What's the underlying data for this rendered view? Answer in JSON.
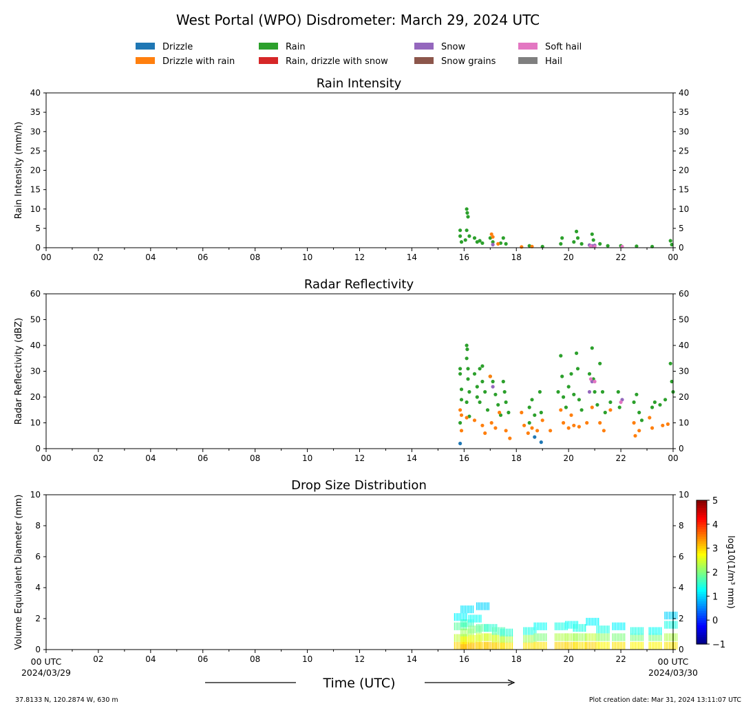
{
  "figure": {
    "title": "West Portal (WPO) Disdrometer: March 29, 2024 UTC",
    "footer_left": "37.8133 N, 120.2874 W, 630 m",
    "footer_right": "Plot creation date: Mar 31, 2024 13:11:07 UTC",
    "xlabel": "Time (UTC)",
    "x_start_label": "00 UTC",
    "x_start_date": "2024/03/29",
    "x_end_label": "00 UTC",
    "x_end_date": "2024/03/30"
  },
  "legend": {
    "placement": "top-center",
    "items": [
      {
        "label": "Drizzle",
        "color": "#1f77b4"
      },
      {
        "label": "Drizzle with rain",
        "color": "#ff7f0e"
      },
      {
        "label": "Rain",
        "color": "#2ca02c"
      },
      {
        "label": "Rain, drizzle with snow",
        "color": "#d62728"
      },
      {
        "label": "Snow",
        "color": "#9467bd"
      },
      {
        "label": "Snow grains",
        "color": "#8c564b"
      },
      {
        "label": "Soft hail",
        "color": "#e377c2"
      },
      {
        "label": "Hail",
        "color": "#7f7f7f"
      }
    ]
  },
  "chart_data": [
    {
      "type": "scatter",
      "title": "Rain Intensity",
      "ylabel": "Rain Intensity (mm/h)",
      "xlim": [
        0,
        24
      ],
      "ylim": [
        0,
        40
      ],
      "yticks": [
        0,
        5,
        10,
        15,
        20,
        25,
        30,
        35,
        40
      ],
      "xtick_labels": [
        "00",
        "02",
        "04",
        "06",
        "08",
        "10",
        "12",
        "14",
        "16",
        "18",
        "20",
        "22",
        "00"
      ],
      "grid": false,
      "series": [
        {
          "name": "Rain",
          "color": "#2ca02c",
          "points": [
            [
              15.85,
              4.5
            ],
            [
              15.85,
              3
            ],
            [
              15.9,
              1.5
            ],
            [
              16.05,
              2
            ],
            [
              16.1,
              10
            ],
            [
              16.12,
              9
            ],
            [
              16.15,
              8
            ],
            [
              16.1,
              4.5
            ],
            [
              16.2,
              3
            ],
            [
              16.4,
              2.5
            ],
            [
              16.5,
              1.5
            ],
            [
              16.6,
              1.8
            ],
            [
              16.7,
              1.2
            ],
            [
              17.0,
              2.5
            ],
            [
              17.1,
              1.5
            ],
            [
              17.4,
              1.2
            ],
            [
              17.5,
              2.5
            ],
            [
              17.6,
              1
            ],
            [
              18.5,
              0.5
            ],
            [
              19.0,
              0.3
            ],
            [
              19.7,
              1
            ],
            [
              19.75,
              2.5
            ],
            [
              20.2,
              1.5
            ],
            [
              20.3,
              4.2
            ],
            [
              20.35,
              2.5
            ],
            [
              20.5,
              1
            ],
            [
              20.9,
              3.5
            ],
            [
              20.95,
              2
            ],
            [
              21.2,
              1
            ],
            [
              21.5,
              0.5
            ],
            [
              22.0,
              0.5
            ],
            [
              22.6,
              0.4
            ],
            [
              23.2,
              0.3
            ],
            [
              23.9,
              1.8
            ],
            [
              23.95,
              0.8
            ]
          ]
        },
        {
          "name": "Drizzle with rain",
          "color": "#ff7f0e",
          "points": [
            [
              17.05,
              3.5
            ],
            [
              17.1,
              2.8
            ],
            [
              17.3,
              1
            ],
            [
              18.2,
              0.2
            ],
            [
              18.6,
              0.3
            ]
          ]
        },
        {
          "name": "Snow",
          "color": "#9467bd",
          "points": [
            [
              17.1,
              0.8
            ],
            [
              20.8,
              0.7
            ],
            [
              20.9,
              0.5
            ],
            [
              21.0,
              0.6
            ]
          ]
        },
        {
          "name": "Soft hail",
          "color": "#e377c2",
          "points": [
            [
              20.85,
              0.4
            ],
            [
              21.0,
              0.3
            ],
            [
              22.05,
              0.3
            ]
          ]
        }
      ]
    },
    {
      "type": "scatter",
      "title": "Radar Reflectivity",
      "ylabel": "Radar Reflectivity (dBZ)",
      "xlim": [
        0,
        24
      ],
      "ylim": [
        0,
        60
      ],
      "yticks": [
        0,
        10,
        20,
        30,
        40,
        50,
        60
      ],
      "xtick_labels": [
        "00",
        "02",
        "04",
        "06",
        "08",
        "10",
        "12",
        "14",
        "16",
        "18",
        "20",
        "22",
        "00"
      ],
      "grid": false,
      "series": [
        {
          "name": "Rain",
          "color": "#2ca02c",
          "points": [
            [
              15.85,
              31
            ],
            [
              15.85,
              29
            ],
            [
              15.9,
              23
            ],
            [
              15.9,
              19
            ],
            [
              15.85,
              10
            ],
            [
              16.1,
              40
            ],
            [
              16.12,
              38.5
            ],
            [
              16.1,
              35
            ],
            [
              16.15,
              31
            ],
            [
              16.15,
              27
            ],
            [
              16.2,
              22
            ],
            [
              16.1,
              18
            ],
            [
              16.2,
              12.5
            ],
            [
              16.4,
              29
            ],
            [
              16.5,
              24
            ],
            [
              16.5,
              20
            ],
            [
              16.6,
              31
            ],
            [
              16.6,
              18
            ],
            [
              16.7,
              32
            ],
            [
              16.7,
              26
            ],
            [
              16.8,
              22
            ],
            [
              16.9,
              15
            ],
            [
              17.0,
              28
            ],
            [
              17.1,
              26
            ],
            [
              17.2,
              21
            ],
            [
              17.3,
              17
            ],
            [
              17.4,
              13
            ],
            [
              17.5,
              26
            ],
            [
              17.55,
              22
            ],
            [
              17.6,
              18
            ],
            [
              17.7,
              14
            ],
            [
              18.5,
              16
            ],
            [
              18.5,
              10
            ],
            [
              18.6,
              19
            ],
            [
              18.7,
              13
            ],
            [
              18.9,
              22
            ],
            [
              18.95,
              14
            ],
            [
              19.6,
              22
            ],
            [
              19.7,
              36
            ],
            [
              19.75,
              28
            ],
            [
              19.8,
              20
            ],
            [
              19.9,
              16
            ],
            [
              20.0,
              24
            ],
            [
              20.1,
              29
            ],
            [
              20.2,
              21
            ],
            [
              20.3,
              37
            ],
            [
              20.35,
              31
            ],
            [
              20.4,
              19
            ],
            [
              20.5,
              15
            ],
            [
              20.8,
              29
            ],
            [
              20.9,
              39
            ],
            [
              20.95,
              27
            ],
            [
              21.0,
              22
            ],
            [
              21.1,
              17
            ],
            [
              21.2,
              33
            ],
            [
              21.3,
              22
            ],
            [
              21.4,
              14
            ],
            [
              21.6,
              18
            ],
            [
              21.9,
              22
            ],
            [
              21.95,
              16
            ],
            [
              22.5,
              18
            ],
            [
              22.6,
              21
            ],
            [
              22.7,
              14
            ],
            [
              22.8,
              11
            ],
            [
              23.2,
              16
            ],
            [
              23.3,
              18
            ],
            [
              23.5,
              17
            ],
            [
              23.7,
              19
            ],
            [
              23.9,
              33
            ],
            [
              23.95,
              26
            ],
            [
              24.0,
              22
            ]
          ]
        },
        {
          "name": "Drizzle with rain",
          "color": "#ff7f0e",
          "points": [
            [
              15.85,
              15
            ],
            [
              15.9,
              13
            ],
            [
              15.9,
              7
            ],
            [
              16.1,
              12
            ],
            [
              16.4,
              11
            ],
            [
              16.7,
              9
            ],
            [
              16.8,
              6
            ],
            [
              17.0,
              28
            ],
            [
              17.05,
              10
            ],
            [
              17.2,
              8
            ],
            [
              17.35,
              14
            ],
            [
              17.6,
              7
            ],
            [
              17.75,
              4
            ],
            [
              18.2,
              14
            ],
            [
              18.3,
              9
            ],
            [
              18.45,
              6
            ],
            [
              18.6,
              8
            ],
            [
              18.8,
              7
            ],
            [
              19.0,
              11
            ],
            [
              19.3,
              7
            ],
            [
              19.7,
              15
            ],
            [
              19.8,
              10
            ],
            [
              20.0,
              8
            ],
            [
              20.1,
              13
            ],
            [
              20.2,
              9
            ],
            [
              20.4,
              8.5
            ],
            [
              20.7,
              10
            ],
            [
              20.9,
              16
            ],
            [
              21.2,
              10
            ],
            [
              21.35,
              7
            ],
            [
              21.6,
              15
            ],
            [
              22.5,
              10
            ],
            [
              22.55,
              5
            ],
            [
              22.7,
              7
            ],
            [
              23.1,
              12
            ],
            [
              23.2,
              8
            ],
            [
              23.6,
              9
            ],
            [
              23.8,
              9.5
            ]
          ]
        },
        {
          "name": "Drizzle",
          "color": "#1f77b4",
          "points": [
            [
              15.85,
              2
            ],
            [
              18.7,
              4.5
            ],
            [
              18.95,
              2.5
            ]
          ]
        },
        {
          "name": "Snow",
          "color": "#9467bd",
          "points": [
            [
              17.1,
              24
            ],
            [
              20.8,
              22
            ],
            [
              20.9,
              26
            ],
            [
              22.05,
              19
            ]
          ]
        },
        {
          "name": "Soft hail",
          "color": "#e377c2",
          "points": [
            [
              20.85,
              27
            ],
            [
              21.0,
              26
            ],
            [
              22.0,
              18
            ]
          ]
        }
      ]
    },
    {
      "type": "heatmap",
      "title": "Drop Size Distribution",
      "ylabel": "Volume Equivalent Diameter (mm)",
      "xlim": [
        0,
        24
      ],
      "ylim": [
        0,
        10
      ],
      "yticks": [
        0,
        2,
        4,
        6,
        8,
        10
      ],
      "xtick_labels": [
        "",
        "02",
        "04",
        "06",
        "08",
        "10",
        "12",
        "14",
        "16",
        "18",
        "20",
        "22",
        ""
      ],
      "colorbar": {
        "label": "log10(1/m³ mm)",
        "min": -1,
        "max": 5,
        "ticks": [
          -1,
          0,
          1,
          2,
          3,
          4,
          5
        ]
      },
      "cells": [
        [
          15.85,
          0.25,
          3
        ],
        [
          15.85,
          0.75,
          2.4
        ],
        [
          15.85,
          1.5,
          1.8
        ],
        [
          15.85,
          2.1,
          1.2
        ],
        [
          16.1,
          0.25,
          3.2
        ],
        [
          16.1,
          0.6,
          2.8
        ],
        [
          16.1,
          1.1,
          2.2
        ],
        [
          16.1,
          1.7,
          1.6
        ],
        [
          16.1,
          2.6,
          1.1
        ],
        [
          16.4,
          0.25,
          3.1
        ],
        [
          16.4,
          0.7,
          2.6
        ],
        [
          16.4,
          1.3,
          2
        ],
        [
          16.4,
          2,
          1.3
        ],
        [
          16.7,
          0.25,
          3
        ],
        [
          16.7,
          0.8,
          2.5
        ],
        [
          16.7,
          1.4,
          1.8
        ],
        [
          16.7,
          2.8,
          1
        ],
        [
          17.0,
          0.25,
          3.1
        ],
        [
          17.0,
          0.8,
          2.5
        ],
        [
          17.0,
          1.4,
          1.5
        ],
        [
          17.3,
          0.25,
          3
        ],
        [
          17.3,
          0.7,
          2.5
        ],
        [
          17.3,
          1.2,
          1.7
        ],
        [
          17.6,
          0.25,
          2.9
        ],
        [
          17.6,
          0.7,
          2.3
        ],
        [
          17.6,
          1.1,
          1.5
        ],
        [
          18.5,
          0.25,
          2.9
        ],
        [
          18.5,
          0.7,
          2.2
        ],
        [
          18.5,
          1.2,
          1.4
        ],
        [
          18.9,
          0.25,
          2.9
        ],
        [
          18.9,
          0.8,
          2
        ],
        [
          18.9,
          1.5,
          1.3
        ],
        [
          19.7,
          0.25,
          3
        ],
        [
          19.7,
          0.8,
          2.3
        ],
        [
          19.7,
          1.5,
          1.4
        ],
        [
          20.1,
          0.25,
          3
        ],
        [
          20.1,
          0.8,
          2.3
        ],
        [
          20.1,
          1.6,
          1.3
        ],
        [
          20.4,
          0.25,
          2.9
        ],
        [
          20.4,
          0.8,
          2.2
        ],
        [
          20.4,
          1.4,
          1.4
        ],
        [
          20.9,
          0.25,
          3
        ],
        [
          20.9,
          0.8,
          2.4
        ],
        [
          20.9,
          1.8,
          1.2
        ],
        [
          21.3,
          0.25,
          2.8
        ],
        [
          21.3,
          0.8,
          2.1
        ],
        [
          21.3,
          1.3,
          1.4
        ],
        [
          21.9,
          0.25,
          2.9
        ],
        [
          21.9,
          0.8,
          2
        ],
        [
          21.9,
          1.5,
          1.2
        ],
        [
          22.6,
          0.25,
          2.8
        ],
        [
          22.6,
          0.8,
          2
        ],
        [
          22.6,
          1.2,
          1.4
        ],
        [
          23.3,
          0.25,
          2.8
        ],
        [
          23.3,
          0.8,
          2
        ],
        [
          23.3,
          1.2,
          1.3
        ],
        [
          23.9,
          0.25,
          2.9
        ],
        [
          23.9,
          0.8,
          2.3
        ],
        [
          23.9,
          1.6,
          1.4
        ],
        [
          23.9,
          2.2,
          1
        ]
      ]
    }
  ]
}
